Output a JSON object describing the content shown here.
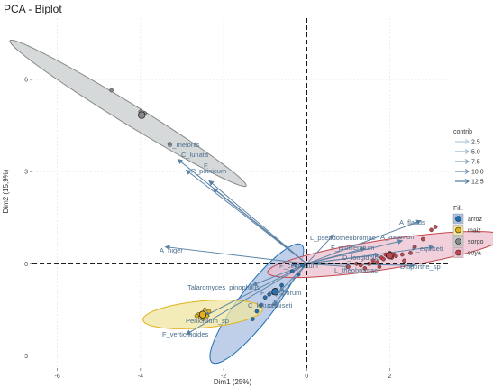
{
  "chart_data": {
    "type": "scatter",
    "title": "PCA - Biplot",
    "xlabel": "Dim1 (25%)",
    "ylabel": "Dim2 (15,9%)",
    "xlim": [
      -6.6,
      3.4
    ],
    "ylim": [
      -3.4,
      8.0
    ],
    "xticks": [
      -6,
      -4,
      -2,
      0,
      2
    ],
    "yticks": [
      -3,
      0,
      3,
      6
    ],
    "grid": true,
    "groups": [
      {
        "name": "arroz",
        "color": "#1f6fb4",
        "ellipse": {
          "cx": -1.2,
          "cy": -1.3,
          "rx": 2.2,
          "ry": 0.38,
          "angle_deg": 62,
          "fill": "#a9bfe2"
        },
        "points": [
          [
            -1.3,
            -1.8
          ],
          [
            -1.2,
            -1.55
          ],
          [
            -1.0,
            -1.1
          ],
          [
            -0.9,
            -1.0
          ],
          [
            -0.6,
            -0.7
          ],
          [
            -0.35,
            -0.25
          ],
          [
            -0.1,
            -0.05
          ],
          [
            -0.2,
            -0.35
          ],
          [
            -0.8,
            -0.95
          ],
          [
            -1.1,
            -1.35
          ]
        ]
      },
      {
        "name": "maiz",
        "color": "#e1b21d",
        "ellipse": {
          "cx": -2.5,
          "cy": -1.65,
          "rx": 1.45,
          "ry": 0.58,
          "angle_deg": 8,
          "fill": "#efe6a0"
        },
        "points": [
          [
            -2.5,
            -1.6
          ],
          [
            -2.4,
            -1.7
          ],
          [
            -2.6,
            -1.65
          ],
          [
            -2.55,
            -1.75
          ],
          [
            -2.35,
            -1.55
          ],
          [
            -2.5,
            -1.8
          ],
          [
            -2.45,
            -1.5
          ],
          [
            -2.65,
            -1.7
          ]
        ]
      },
      {
        "name": "sorgo",
        "color": "#888888",
        "ellipse": {
          "cx": -4.3,
          "cy": 4.9,
          "rx": 3.7,
          "ry": 0.3,
          "angle_deg": -40,
          "fill": "#c8cccc"
        },
        "points": [
          [
            -4.7,
            5.65
          ],
          [
            -4.0,
            4.95
          ],
          [
            -3.9,
            4.9
          ],
          [
            -3.95,
            4.8
          ],
          [
            -3.3,
            3.9
          ]
        ]
      },
      {
        "name": "soya",
        "color": "#c2464e",
        "ellipse": {
          "cx": 1.9,
          "cy": 0.3,
          "rx": 2.9,
          "ry": 0.62,
          "angle_deg": 12,
          "fill": "#ecc0cf"
        },
        "points": [
          [
            1.0,
            -0.1
          ],
          [
            1.2,
            0.0
          ],
          [
            1.3,
            -0.05
          ],
          [
            1.5,
            0.0
          ],
          [
            1.6,
            0.1
          ],
          [
            1.7,
            0.05
          ],
          [
            1.8,
            0.2
          ],
          [
            1.85,
            0.15
          ],
          [
            1.9,
            0.3
          ],
          [
            1.95,
            0.25
          ],
          [
            2.0,
            0.35
          ],
          [
            2.05,
            0.2
          ],
          [
            2.1,
            0.3
          ],
          [
            2.15,
            0.25
          ],
          [
            2.3,
            0.3
          ],
          [
            2.35,
            0.1
          ],
          [
            2.5,
            0.35
          ],
          [
            2.6,
            0.55
          ],
          [
            2.8,
            0.8
          ],
          [
            3.0,
            1.1
          ],
          [
            3.1,
            1.2
          ],
          [
            1.75,
            -0.1
          ],
          [
            1.4,
            -0.15
          ]
        ]
      }
    ],
    "variables": [
      {
        "name": "D_melonis",
        "x": -3.1,
        "y": 3.4
      },
      {
        "name": "C_lunata",
        "x": -2.9,
        "y": 3.05
      },
      {
        "name": "F",
        "x": -2.35,
        "y": 2.7
      },
      {
        "name": "P_poinicum",
        "x": -2.25,
        "y": 2.45
      },
      {
        "name": "A_niger",
        "x": -3.4,
        "y": 0.55
      },
      {
        "name": "L_pseudotheobromae",
        "x": 0.65,
        "y": 0.95
      },
      {
        "name": "A_flavus",
        "x": 2.75,
        "y": 1.4
      },
      {
        "name": "F_proliferatum",
        "x": 1.4,
        "y": 0.5
      },
      {
        "name": "A_awamori",
        "x": 2.3,
        "y": 0.75
      },
      {
        "name": "F_equiseti",
        "x": 3.05,
        "y": 0.55
      },
      {
        "name": "D_longidolia",
        "x": 1.75,
        "y": 0.3
      },
      {
        "name": "L_theobromae",
        "x": 1.05,
        "y": -0.1
      },
      {
        "name": "Diaporthe_sp",
        "x": 2.6,
        "y": -0.05
      },
      {
        "name": "F_circinatum",
        "x": -0.35,
        "y": -0.05
      },
      {
        "name": "Talaromyces_pinophilus",
        "x": -1.3,
        "y": -0.7
      },
      {
        "name": "F_oxysporum",
        "x": -0.65,
        "y": -0.9
      },
      {
        "name": "C_kikuchii",
        "x": -0.8,
        "y": -1.35
      },
      {
        "name": "F_semiseti",
        "x": -0.8,
        "y": -1.35
      },
      {
        "name": "Penicillium_sp",
        "x": -2.45,
        "y": -1.7
      },
      {
        "name": "F_verticillioides",
        "x": -2.9,
        "y": -2.3
      }
    ],
    "legend_contrib": {
      "title": "contrib",
      "values": [
        "2.5",
        "5.0",
        "7.5",
        "10.0",
        "12.5"
      ]
    },
    "legend_fill": {
      "title": "Fill.",
      "items": [
        "arroz",
        "maiz",
        "sorgo",
        "soya"
      ]
    },
    "legend_placement": "right"
  }
}
